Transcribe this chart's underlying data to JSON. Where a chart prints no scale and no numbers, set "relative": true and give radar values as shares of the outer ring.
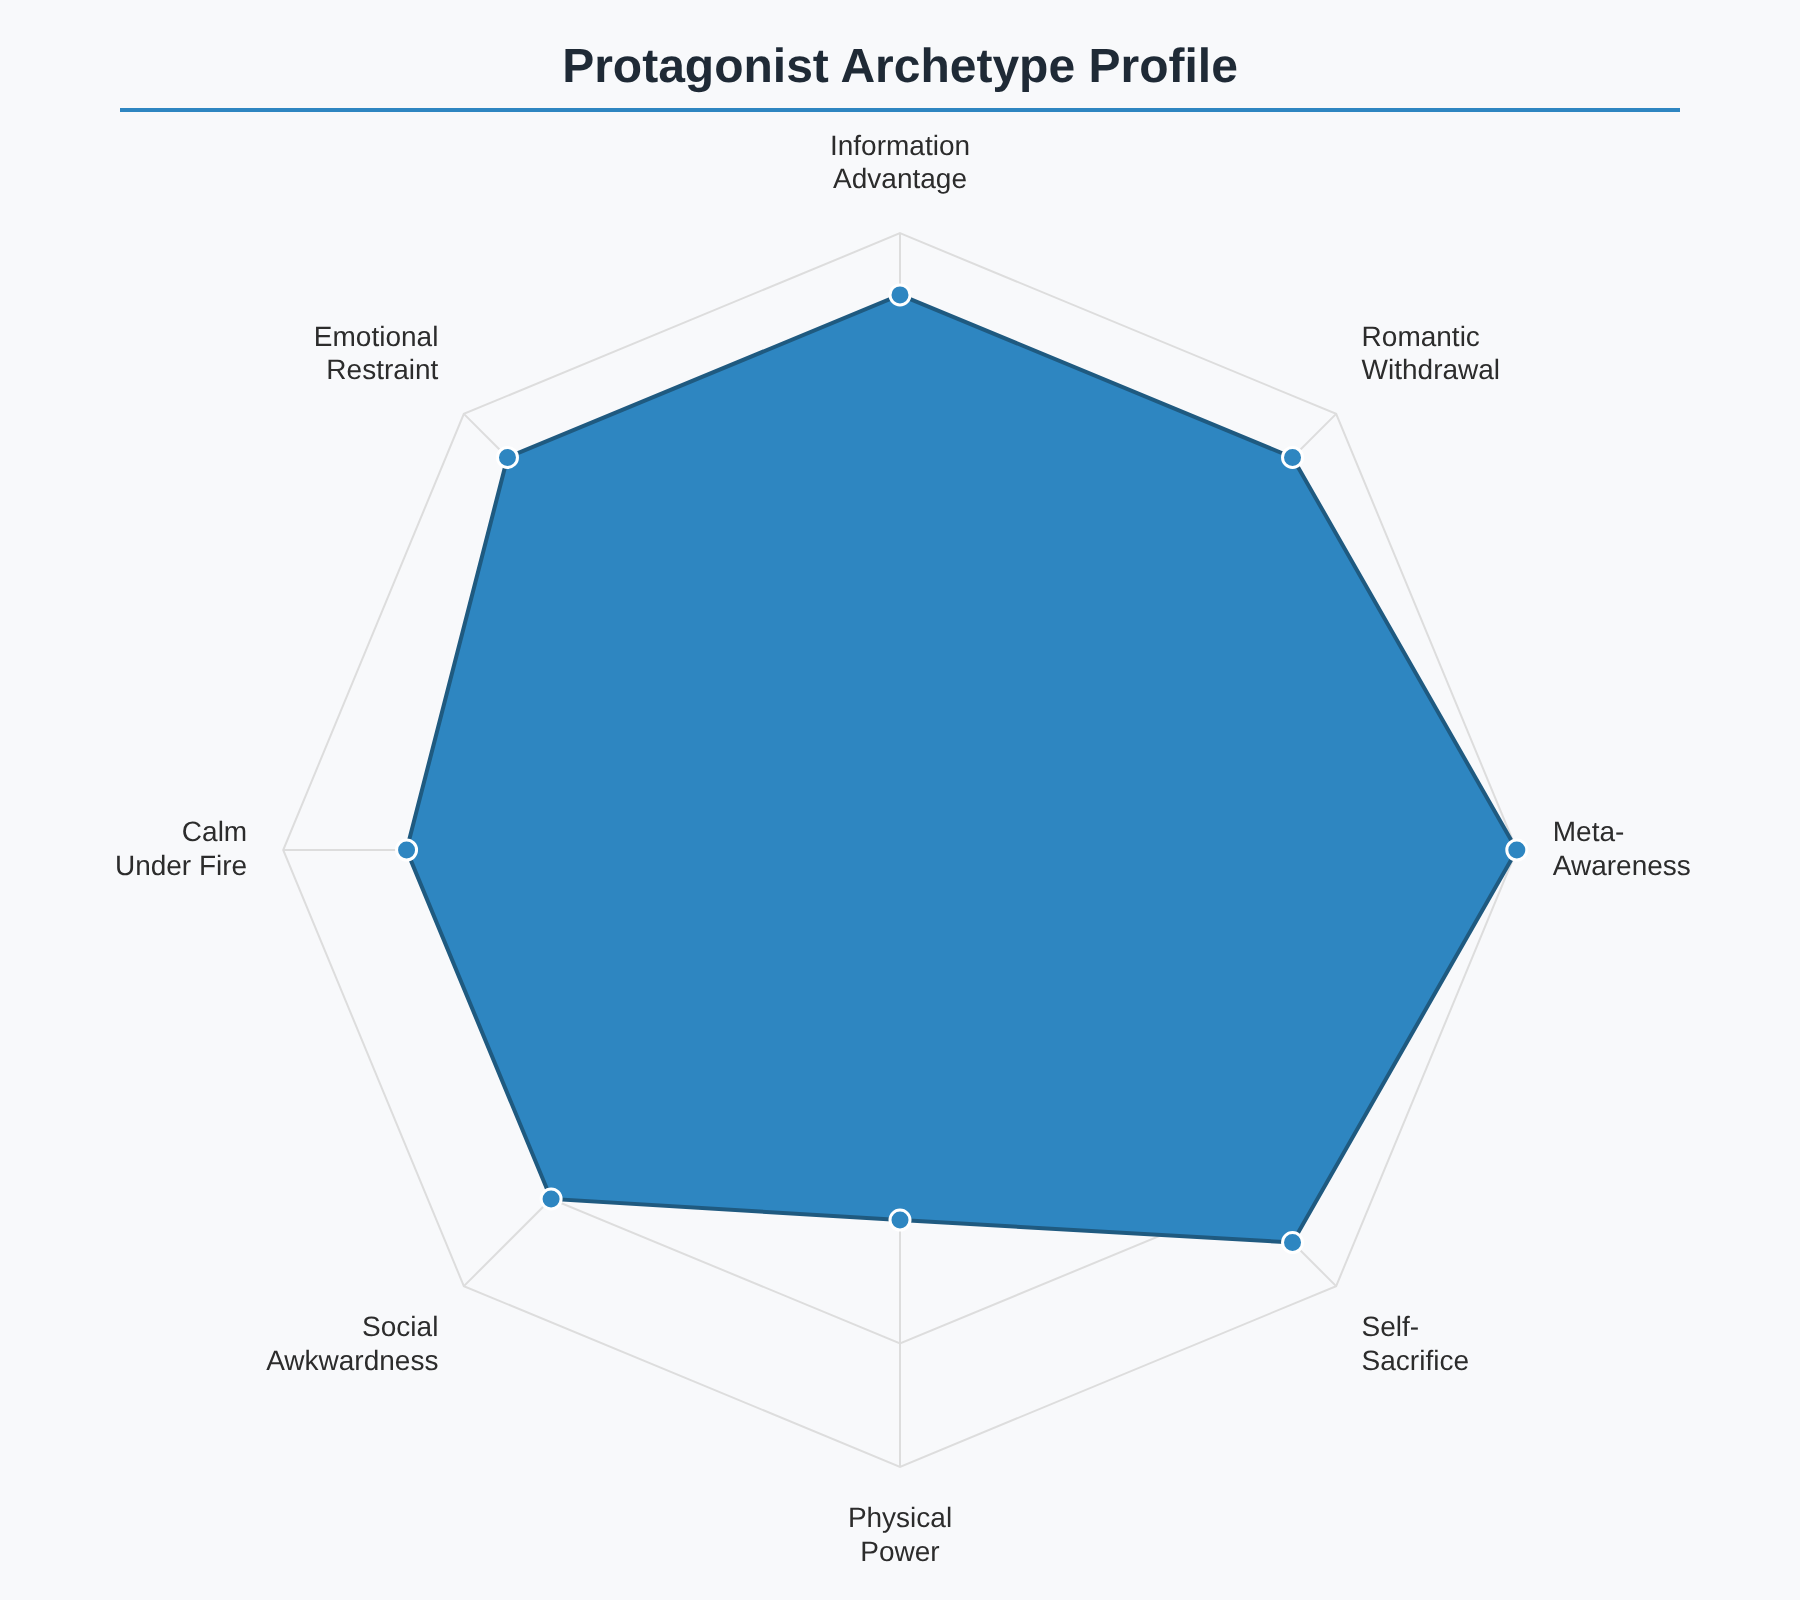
{
  "chart_data": {
    "type": "radar",
    "title": "Protagonist Archetype Profile",
    "relative": true,
    "categories": [
      "Information\nAdvantage",
      "Romantic\nWithdrawal",
      "Meta-\nAwareness",
      "Self-\nSacrifice",
      "Physical\nPower",
      "Social\nAwkwardness",
      "Calm\nUnder Fire",
      "Emotional\nRestraint"
    ],
    "series": [
      {
        "color": "#2e86c1",
        "values": [
          0.9,
          0.9,
          1.0,
          0.9,
          0.6,
          0.8,
          0.8,
          0.9
        ]
      }
    ],
    "marker": "circle",
    "legend": false
  }
}
